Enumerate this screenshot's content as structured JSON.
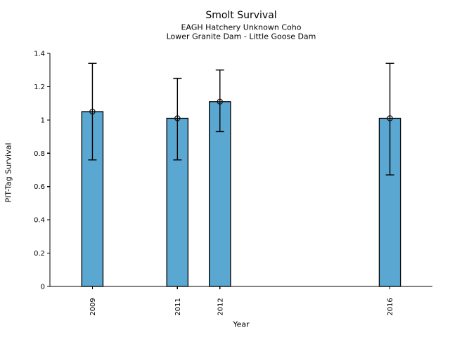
{
  "chart_data": {
    "type": "bar",
    "title": "Smolt Survival",
    "subtitle": [
      "EAGH Hatchery Unknown Coho",
      "Lower Granite Dam - Little Goose Dam"
    ],
    "xlabel": "Year",
    "ylabel": "PIT-Tag Survival",
    "categories": [
      "2009",
      "2011",
      "2012",
      "2016"
    ],
    "x": [
      2009,
      2011,
      2012,
      2016
    ],
    "values": [
      1.05,
      1.01,
      1.11,
      1.01
    ],
    "error_low": [
      0.76,
      0.76,
      0.93,
      0.67
    ],
    "error_high": [
      1.34,
      1.25,
      1.3,
      1.34
    ],
    "xlim": [
      2008,
      2017
    ],
    "ylim": [
      0,
      1.4
    ],
    "y_ticks": [
      0,
      0.2,
      0.4,
      0.6,
      0.8,
      1,
      1.2,
      1.4
    ],
    "y_tick_labels": [
      "0",
      "0.2",
      "0.4",
      "0.6",
      "0.8",
      "1",
      "1.2",
      "1.4"
    ],
    "bar_width_years": 0.5,
    "bar_color": "#5AA7D1",
    "bar_edge_color": "#000000",
    "error_bar_color": "#000000",
    "marker": "open-circle",
    "grid": false,
    "legend_position": "none"
  }
}
